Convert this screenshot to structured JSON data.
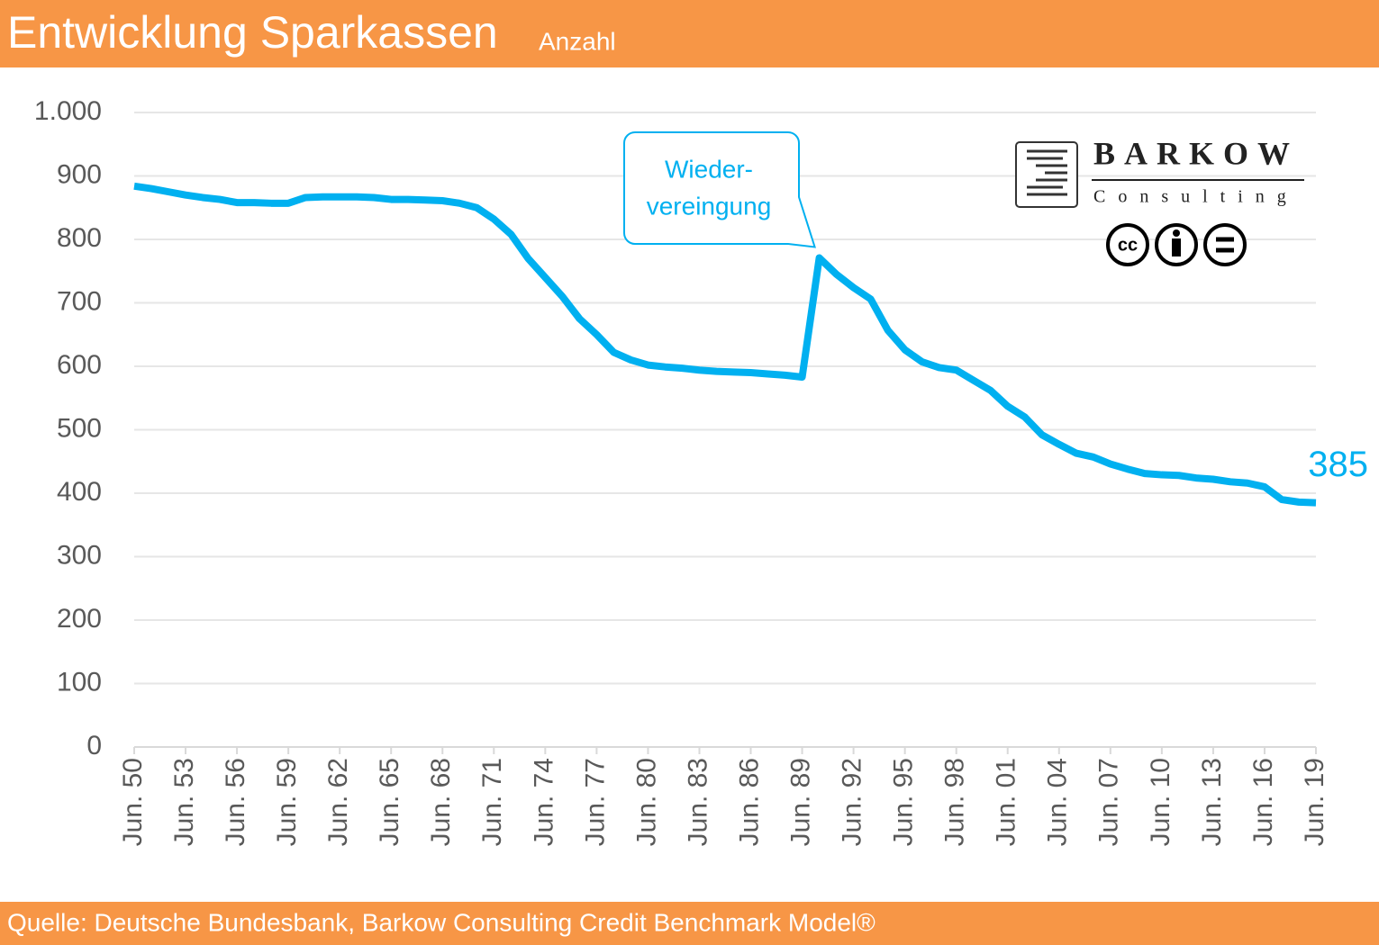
{
  "chart_data": {
    "type": "line",
    "title": "Entwicklung Sparkassen",
    "subtitle": "Anzahl",
    "source": "Quelle: Deutsche Bundesbank, Barkow Consulting Credit Benchmark Model®",
    "annotation": [
      "Wieder-",
      "vereingung"
    ],
    "logo": {
      "name": "BARKOW",
      "sub": "Consulting",
      "license": "cc"
    },
    "categories": [
      "Jun. 50",
      null,
      null,
      "Jun. 53",
      null,
      null,
      "Jun. 56",
      null,
      null,
      "Jun. 59",
      null,
      null,
      "Jun. 62",
      null,
      null,
      "Jun. 65",
      null,
      null,
      "Jun. 68",
      null,
      null,
      "Jun. 71",
      null,
      null,
      "Jun. 74",
      null,
      null,
      "Jun. 77",
      null,
      null,
      "Jun. 80",
      null,
      null,
      "Jun. 83",
      null,
      null,
      "Jun. 86",
      null,
      null,
      "Jun. 89",
      null,
      null,
      "Jun. 92",
      null,
      null,
      "Jun. 95",
      null,
      null,
      "Jun. 98",
      null,
      null,
      "Jun. 01",
      null,
      null,
      "Jun. 04",
      null,
      null,
      "Jun. 07",
      null,
      null,
      "Jun. 10",
      null,
      null,
      "Jun. 13",
      null,
      null,
      "Jun. 16",
      null,
      null,
      "Jun. 19"
    ],
    "series": [
      {
        "name": "Sparkassen",
        "color": "#00b0f0",
        "values": [
          884,
          880,
          875,
          870,
          866,
          863,
          858,
          858,
          857,
          857,
          866,
          867,
          867,
          867,
          866,
          863,
          863,
          862,
          861,
          857,
          850,
          832,
          808,
          770,
          740,
          710,
          675,
          650,
          622,
          610,
          602,
          599,
          597,
          594,
          592,
          591,
          590,
          588,
          586,
          583,
          771,
          745,
          724,
          706,
          657,
          626,
          607,
          598,
          594,
          578,
          562,
          537,
          520,
          492,
          477,
          463,
          457,
          446,
          438,
          431,
          429,
          428,
          424,
          422,
          418,
          416,
          410,
          390,
          386,
          385
        ]
      }
    ],
    "ylim": [
      0,
      1000
    ],
    "yticks": [
      0,
      100,
      200,
      300,
      400,
      500,
      600,
      700,
      800,
      900,
      {
        "value": 1000,
        "label": "1.000"
      }
    ],
    "grid": true
  }
}
